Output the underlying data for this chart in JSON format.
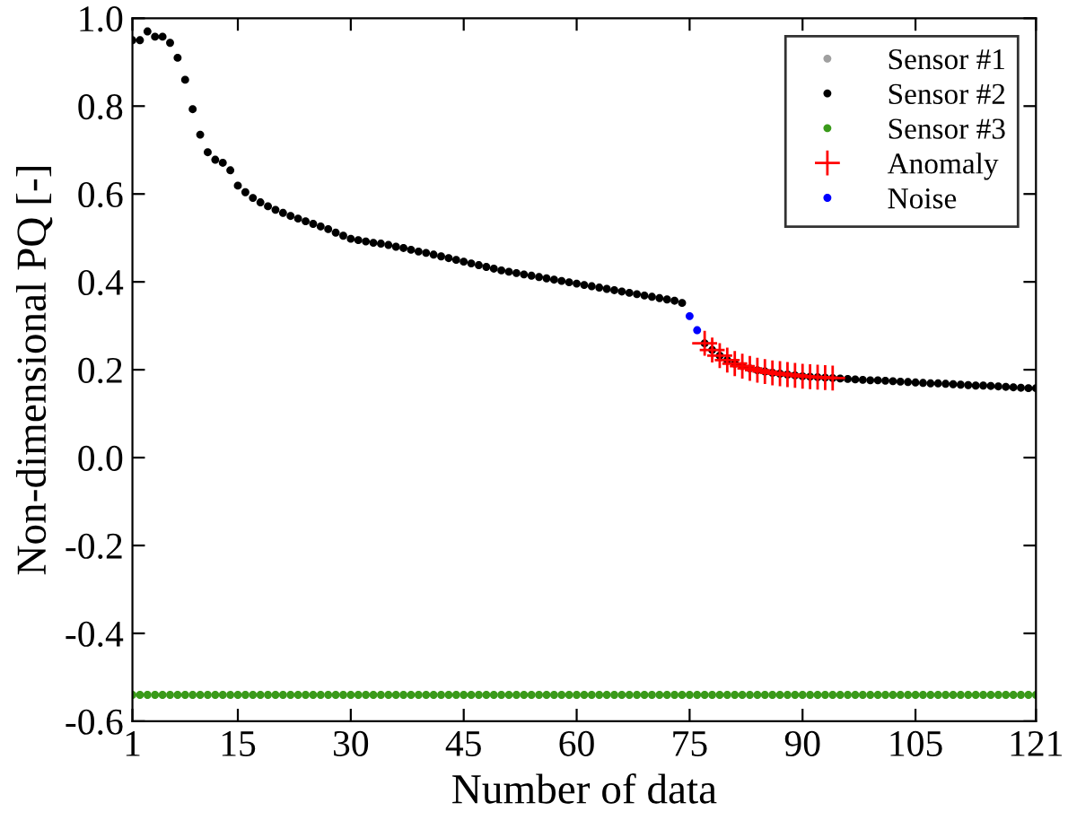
{
  "chart_data": {
    "type": "scatter",
    "xlabel": "Number of data",
    "ylabel": "Non-dimensional PQ [-]",
    "xlim": [
      1,
      121
    ],
    "xticks": [
      1,
      15,
      30,
      45,
      60,
      75,
      90,
      105,
      121
    ],
    "ylim": [
      -0.6,
      1.0
    ],
    "yticks": [
      {
        "value": -0.6,
        "label": "-0.6"
      },
      {
        "value": -0.4,
        "label": "-0.4"
      },
      {
        "value": -0.2,
        "label": "-0.2"
      },
      {
        "value": 0,
        "label": "0.0"
      },
      {
        "value": 0.2,
        "label": "0.2"
      },
      {
        "value": 0.4,
        "label": "0.4"
      },
      {
        "value": 0.6,
        "label": "0.6"
      },
      {
        "value": 0.8,
        "label": "0.8"
      },
      {
        "value": 1.0,
        "label": "1.0"
      }
    ],
    "grid": false,
    "legend": "top right",
    "x": [
      1,
      2,
      3,
      4,
      5,
      6,
      7,
      8,
      9,
      10,
      11,
      12,
      13,
      14,
      15,
      16,
      17,
      18,
      19,
      20,
      21,
      22,
      23,
      24,
      25,
      26,
      27,
      28,
      29,
      30,
      31,
      32,
      33,
      34,
      35,
      36,
      37,
      38,
      39,
      40,
      41,
      42,
      43,
      44,
      45,
      46,
      47,
      48,
      49,
      50,
      51,
      52,
      53,
      54,
      55,
      56,
      57,
      58,
      59,
      60,
      61,
      62,
      63,
      64,
      65,
      66,
      67,
      68,
      69,
      70,
      71,
      72,
      73,
      74,
      75,
      76,
      77,
      78,
      79,
      80,
      81,
      82,
      83,
      84,
      85,
      86,
      87,
      88,
      89,
      90,
      91,
      92,
      93,
      94,
      95,
      96,
      97,
      98,
      99,
      100,
      101,
      102,
      103,
      104,
      105,
      106,
      107,
      108,
      109,
      110,
      111,
      112,
      113,
      114,
      115,
      116,
      117,
      118,
      119,
      120,
      121
    ],
    "series": [
      {
        "name": "Sensor #1",
        "color": "#a0a0a0",
        "marker": "circle",
        "values": [
          null,
          null,
          null,
          null,
          null,
          null,
          null,
          null,
          null,
          null,
          null,
          null,
          null,
          null,
          null,
          null,
          null,
          null,
          null,
          null,
          null,
          null,
          null,
          null,
          null,
          null,
          null,
          null,
          null,
          null,
          null,
          null,
          null,
          null,
          null,
          null,
          null,
          null,
          null,
          null,
          null,
          null,
          null,
          null,
          null,
          null,
          null,
          null,
          null,
          null,
          null,
          null,
          null,
          null,
          null,
          null,
          null,
          null,
          null,
          null,
          null,
          null,
          null,
          null,
          null,
          null,
          null,
          null,
          null,
          null,
          null,
          null,
          null,
          null,
          null,
          null,
          null,
          null,
          null,
          null,
          null,
          null,
          null,
          null,
          null,
          null,
          null,
          null,
          null,
          null,
          null,
          null,
          null,
          null,
          null,
          null,
          null,
          null,
          null,
          null,
          null,
          null,
          null,
          null,
          null,
          null,
          null,
          null,
          null,
          null,
          null,
          null,
          null,
          null,
          null,
          null,
          null,
          null,
          null,
          null,
          null
        ]
      },
      {
        "name": "Sensor #2",
        "color": "#000000",
        "marker": "circle",
        "values": [
          0.95,
          0.95,
          0.97,
          0.958,
          0.958,
          0.944,
          0.91,
          0.86,
          0.793,
          0.735,
          0.695,
          0.678,
          0.671,
          0.654,
          0.619,
          0.604,
          0.591,
          0.581,
          0.572,
          0.564,
          0.557,
          0.55,
          0.544,
          0.538,
          0.532,
          0.526,
          0.52,
          0.512,
          0.505,
          0.498,
          0.495,
          0.492,
          0.489,
          0.487,
          0.484,
          0.48,
          0.477,
          0.473,
          0.469,
          0.466,
          0.462,
          0.458,
          0.454,
          0.45,
          0.446,
          0.442,
          0.438,
          0.434,
          0.43,
          0.426,
          0.423,
          0.42,
          0.417,
          0.414,
          0.411,
          0.408,
          0.405,
          0.402,
          0.399,
          0.396,
          0.393,
          0.39,
          0.387,
          0.384,
          0.381,
          0.378,
          0.375,
          0.372,
          0.369,
          0.366,
          0.363,
          0.36,
          0.357,
          0.352,
          null,
          null,
          0.26,
          0.245,
          0.232,
          0.222,
          0.214,
          0.208,
          0.203,
          0.199,
          0.196,
          0.193,
          0.191,
          0.189,
          0.187,
          0.185,
          0.184,
          0.183,
          0.182,
          0.181,
          0.18,
          0.179,
          0.178,
          0.177,
          0.176,
          0.176,
          0.175,
          0.174,
          0.173,
          0.172,
          0.171,
          0.17,
          0.169,
          0.169,
          0.168,
          0.167,
          0.166,
          0.165,
          0.164,
          0.164,
          0.163,
          0.162,
          0.161,
          0.16,
          0.159,
          0.158,
          0.158
        ]
      },
      {
        "name": "Sensor #3",
        "color": "#3a9a1a",
        "marker": "circle",
        "values": [
          -0.54,
          -0.54,
          -0.54,
          -0.54,
          -0.54,
          -0.54,
          -0.54,
          -0.54,
          -0.54,
          -0.54,
          -0.54,
          -0.54,
          -0.54,
          -0.54,
          -0.54,
          -0.54,
          -0.54,
          -0.54,
          -0.54,
          -0.54,
          -0.54,
          -0.54,
          -0.54,
          -0.54,
          -0.54,
          -0.54,
          -0.54,
          -0.54,
          -0.54,
          -0.54,
          -0.54,
          -0.54,
          -0.54,
          -0.54,
          -0.54,
          -0.54,
          -0.54,
          -0.54,
          -0.54,
          -0.54,
          -0.54,
          -0.54,
          -0.54,
          -0.54,
          -0.54,
          -0.54,
          -0.54,
          -0.54,
          -0.54,
          -0.54,
          -0.54,
          -0.54,
          -0.54,
          -0.54,
          -0.54,
          -0.54,
          -0.54,
          -0.54,
          -0.54,
          -0.54,
          -0.54,
          -0.54,
          -0.54,
          -0.54,
          -0.54,
          -0.54,
          -0.54,
          -0.54,
          -0.54,
          -0.54,
          -0.54,
          -0.54,
          -0.54,
          -0.54,
          -0.54,
          -0.54,
          -0.54,
          -0.54,
          -0.54,
          -0.54,
          -0.54,
          -0.54,
          -0.54,
          -0.54,
          -0.54,
          -0.54,
          -0.54,
          -0.54,
          -0.54,
          -0.54,
          -0.54,
          -0.54,
          -0.54,
          -0.54,
          -0.54,
          -0.54,
          -0.54,
          -0.54,
          -0.54,
          -0.54,
          -0.54,
          -0.54,
          -0.54,
          -0.54,
          -0.54,
          -0.54,
          -0.54,
          -0.54,
          -0.54,
          -0.54,
          -0.54,
          -0.54,
          -0.54,
          -0.54,
          -0.54,
          -0.54,
          -0.54,
          -0.54,
          -0.54,
          -0.54,
          -0.54
        ]
      },
      {
        "name": "Anomaly",
        "color": "#ff0000",
        "marker": "cross",
        "x": [
          77,
          78,
          79,
          80,
          81,
          82,
          83,
          84,
          85,
          86,
          87,
          88,
          89,
          90,
          91,
          92,
          93,
          94
        ],
        "values": [
          0.26,
          0.245,
          0.232,
          0.222,
          0.214,
          0.208,
          0.203,
          0.199,
          0.196,
          0.193,
          0.191,
          0.189,
          0.187,
          0.185,
          0.184,
          0.183,
          0.182,
          0.181
        ]
      },
      {
        "name": "Noise",
        "color": "#0000ff",
        "marker": "circle",
        "x": [
          75,
          76
        ],
        "values": [
          0.322,
          0.29
        ]
      }
    ]
  }
}
